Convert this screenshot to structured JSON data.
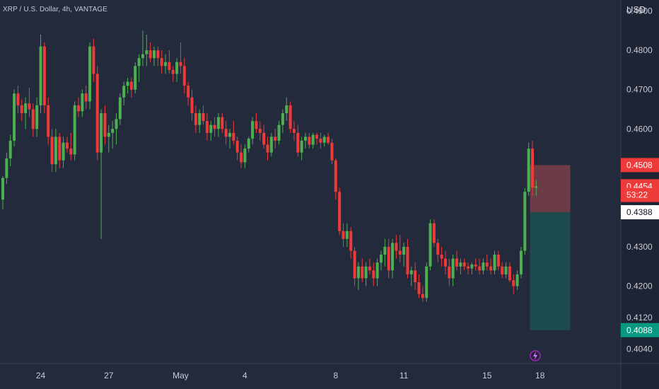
{
  "header": {
    "title": "XRP / U.S. Dollar, 4h, VANTAGE"
  },
  "axis": {
    "currency": "USD"
  },
  "chart_data": {
    "type": "candlestick",
    "title": "XRP / U.S. Dollar, 4h, VANTAGE",
    "price_axis": {
      "unit": "USD",
      "ticks": [
        0.404,
        0.412,
        0.42,
        0.43,
        0.4388,
        0.4454,
        0.4508,
        0.46,
        0.47,
        0.48,
        0.49
      ],
      "tick_labels": [
        "0.4040",
        "0.4120",
        "0.4200",
        "0.4300",
        "0.4388",
        "0.4454",
        "0.4508",
        "0.4600",
        "0.4700",
        "0.4800",
        "0.4900"
      ],
      "range": [
        0.4003,
        0.4928
      ]
    },
    "time_axis": {
      "labels": [
        "24",
        "27",
        "May",
        "4",
        "8",
        "11",
        "15",
        "18"
      ],
      "label_index": [
        10,
        28,
        47,
        64,
        88,
        106,
        128,
        142
      ]
    },
    "colors": {
      "up": "#4caf50",
      "down": "#ef3a3a",
      "axis_bg": "#1e2433",
      "chart_bg": "#232a3b",
      "stop_zone": "#7a3e48",
      "target_zone": "#1d4d4e"
    },
    "price_labels": [
      {
        "text": "0.4508",
        "value": 0.4508,
        "kind": "stop"
      },
      {
        "text": "0.4454",
        "value": 0.4454,
        "kind": "current"
      },
      {
        "text": "53:22",
        "value": 0.4432,
        "kind": "countdown"
      },
      {
        "text": "0.4388",
        "value": 0.4388,
        "kind": "entry"
      },
      {
        "text": "0.4088",
        "value": 0.4088,
        "kind": "target"
      }
    ],
    "position_tool": {
      "side": "short",
      "entry": 0.4388,
      "stop": 0.4508,
      "target": 0.4088,
      "start_index": 139,
      "end_index": 150
    },
    "candles": [
      [
        0.442,
        0.448,
        0.4395,
        0.4475
      ],
      [
        0.4475,
        0.454,
        0.446,
        0.4525
      ],
      [
        0.4525,
        0.4585,
        0.4505,
        0.457
      ],
      [
        0.457,
        0.47,
        0.4555,
        0.469
      ],
      [
        0.469,
        0.471,
        0.464,
        0.466
      ],
      [
        0.466,
        0.4675,
        0.462,
        0.464
      ],
      [
        0.464,
        0.468,
        0.46,
        0.4665
      ],
      [
        0.4665,
        0.4705,
        0.463,
        0.465
      ],
      [
        0.465,
        0.4665,
        0.458,
        0.46
      ],
      [
        0.46,
        0.468,
        0.458,
        0.466
      ],
      [
        0.466,
        0.484,
        0.464,
        0.481
      ],
      [
        0.481,
        0.482,
        0.464,
        0.466
      ],
      [
        0.466,
        0.468,
        0.456,
        0.458
      ],
      [
        0.458,
        0.46,
        0.449,
        0.451
      ],
      [
        0.451,
        0.46,
        0.449,
        0.458
      ],
      [
        0.458,
        0.459,
        0.45,
        0.452
      ],
      [
        0.452,
        0.458,
        0.45,
        0.4565
      ],
      [
        0.4565,
        0.458,
        0.454,
        0.455
      ],
      [
        0.455,
        0.459,
        0.452,
        0.4535
      ],
      [
        0.4535,
        0.467,
        0.452,
        0.466
      ],
      [
        0.466,
        0.468,
        0.463,
        0.4645
      ],
      [
        0.4645,
        0.47,
        0.463,
        0.469
      ],
      [
        0.469,
        0.471,
        0.465,
        0.467
      ],
      [
        0.467,
        0.482,
        0.465,
        0.481
      ],
      [
        0.481,
        0.483,
        0.472,
        0.474
      ],
      [
        0.474,
        0.476,
        0.452,
        0.454
      ],
      [
        0.454,
        0.465,
        0.432,
        0.464
      ],
      [
        0.464,
        0.466,
        0.456,
        0.458
      ],
      [
        0.458,
        0.461,
        0.454,
        0.459
      ],
      [
        0.459,
        0.462,
        0.455,
        0.46
      ],
      [
        0.46,
        0.464,
        0.456,
        0.4625
      ],
      [
        0.4625,
        0.469,
        0.461,
        0.468
      ],
      [
        0.468,
        0.472,
        0.466,
        0.471
      ],
      [
        0.471,
        0.473,
        0.469,
        0.472
      ],
      [
        0.472,
        0.473,
        0.468,
        0.47
      ],
      [
        0.47,
        0.477,
        0.469,
        0.476
      ],
      [
        0.476,
        0.479,
        0.472,
        0.478
      ],
      [
        0.478,
        0.485,
        0.476,
        0.479
      ],
      [
        0.479,
        0.484,
        0.476,
        0.48
      ],
      [
        0.48,
        0.482,
        0.477,
        0.478
      ],
      [
        0.478,
        0.481,
        0.476,
        0.48
      ],
      [
        0.48,
        0.481,
        0.476,
        0.478
      ],
      [
        0.478,
        0.48,
        0.474,
        0.476
      ],
      [
        0.476,
        0.479,
        0.474,
        0.477
      ],
      [
        0.477,
        0.48,
        0.474,
        0.475
      ],
      [
        0.475,
        0.476,
        0.472,
        0.474
      ],
      [
        0.474,
        0.478,
        0.472,
        0.477
      ],
      [
        0.477,
        0.482,
        0.474,
        0.476
      ],
      [
        0.476,
        0.478,
        0.469,
        0.471
      ],
      [
        0.471,
        0.472,
        0.466,
        0.468
      ],
      [
        0.468,
        0.47,
        0.462,
        0.464
      ],
      [
        0.464,
        0.466,
        0.459,
        0.461
      ],
      [
        0.461,
        0.465,
        0.459,
        0.464
      ],
      [
        0.464,
        0.466,
        0.461,
        0.462
      ],
      [
        0.462,
        0.464,
        0.457,
        0.459
      ],
      [
        0.459,
        0.462,
        0.457,
        0.461
      ],
      [
        0.461,
        0.463,
        0.458,
        0.46
      ],
      [
        0.46,
        0.464,
        0.458,
        0.463
      ],
      [
        0.463,
        0.464,
        0.459,
        0.46
      ],
      [
        0.46,
        0.462,
        0.456,
        0.458
      ],
      [
        0.458,
        0.46,
        0.455,
        0.459
      ],
      [
        0.459,
        0.462,
        0.456,
        0.457
      ],
      [
        0.457,
        0.458,
        0.452,
        0.454
      ],
      [
        0.454,
        0.456,
        0.45,
        0.4515
      ],
      [
        0.4515,
        0.456,
        0.45,
        0.455
      ],
      [
        0.455,
        0.458,
        0.454,
        0.4575
      ],
      [
        0.4575,
        0.463,
        0.456,
        0.462
      ],
      [
        0.462,
        0.464,
        0.459,
        0.46
      ],
      [
        0.46,
        0.462,
        0.457,
        0.459
      ],
      [
        0.459,
        0.461,
        0.455,
        0.456
      ],
      [
        0.456,
        0.458,
        0.452,
        0.454
      ],
      [
        0.454,
        0.459,
        0.453,
        0.458
      ],
      [
        0.458,
        0.46,
        0.455,
        0.457
      ],
      [
        0.457,
        0.462,
        0.456,
        0.461
      ],
      [
        0.461,
        0.465,
        0.459,
        0.464
      ],
      [
        0.464,
        0.468,
        0.462,
        0.466
      ],
      [
        0.466,
        0.467,
        0.459,
        0.46
      ],
      [
        0.46,
        0.462,
        0.457,
        0.459
      ],
      [
        0.459,
        0.461,
        0.453,
        0.454
      ],
      [
        0.454,
        0.458,
        0.452,
        0.457
      ],
      [
        0.457,
        0.459,
        0.455,
        0.458
      ],
      [
        0.458,
        0.459,
        0.455,
        0.456
      ],
      [
        0.456,
        0.459,
        0.455,
        0.4585
      ],
      [
        0.4585,
        0.459,
        0.456,
        0.4575
      ],
      [
        0.4575,
        0.459,
        0.455,
        0.4565
      ],
      [
        0.4565,
        0.4585,
        0.4555,
        0.458
      ],
      [
        0.458,
        0.459,
        0.456,
        0.4565
      ],
      [
        0.4565,
        0.4575,
        0.451,
        0.452
      ],
      [
        0.452,
        0.4525,
        0.442,
        0.444
      ],
      [
        0.444,
        0.445,
        0.433,
        0.434
      ],
      [
        0.434,
        0.436,
        0.43,
        0.432
      ],
      [
        0.432,
        0.436,
        0.43,
        0.434
      ],
      [
        0.434,
        0.435,
        0.427,
        0.429
      ],
      [
        0.429,
        0.43,
        0.42,
        0.422
      ],
      [
        0.422,
        0.426,
        0.419,
        0.425
      ],
      [
        0.425,
        0.427,
        0.421,
        0.422
      ],
      [
        0.422,
        0.426,
        0.42,
        0.425
      ],
      [
        0.425,
        0.427,
        0.423,
        0.424
      ],
      [
        0.424,
        0.426,
        0.42,
        0.422
      ],
      [
        0.422,
        0.427,
        0.42,
        0.426
      ],
      [
        0.426,
        0.429,
        0.424,
        0.428
      ],
      [
        0.428,
        0.432,
        0.425,
        0.43
      ],
      [
        0.43,
        0.432,
        0.422,
        0.424
      ],
      [
        0.424,
        0.432,
        0.422,
        0.431
      ],
      [
        0.431,
        0.433,
        0.427,
        0.429
      ],
      [
        0.429,
        0.433,
        0.426,
        0.428
      ],
      [
        0.428,
        0.431,
        0.425,
        0.43
      ],
      [
        0.43,
        0.432,
        0.422,
        0.423
      ],
      [
        0.423,
        0.425,
        0.42,
        0.424
      ],
      [
        0.424,
        0.426,
        0.419,
        0.421
      ],
      [
        0.421,
        0.423,
        0.417,
        0.418
      ],
      [
        0.418,
        0.42,
        0.416,
        0.417
      ],
      [
        0.417,
        0.426,
        0.416,
        0.425
      ],
      [
        0.425,
        0.437,
        0.424,
        0.436
      ],
      [
        0.436,
        0.437,
        0.43,
        0.431
      ],
      [
        0.431,
        0.432,
        0.426,
        0.428
      ],
      [
        0.428,
        0.43,
        0.425,
        0.427
      ],
      [
        0.427,
        0.429,
        0.423,
        0.425
      ],
      [
        0.425,
        0.427,
        0.42,
        0.422
      ],
      [
        0.422,
        0.428,
        0.42,
        0.427
      ],
      [
        0.427,
        0.429,
        0.424,
        0.425
      ],
      [
        0.425,
        0.427,
        0.423,
        0.426
      ],
      [
        0.426,
        0.427,
        0.424,
        0.425
      ],
      [
        0.425,
        0.426,
        0.423,
        0.4245
      ],
      [
        0.4245,
        0.426,
        0.423,
        0.4255
      ],
      [
        0.4255,
        0.427,
        0.424,
        0.425
      ],
      [
        0.425,
        0.427,
        0.423,
        0.424
      ],
      [
        0.424,
        0.427,
        0.423,
        0.426
      ],
      [
        0.426,
        0.428,
        0.424,
        0.425
      ],
      [
        0.425,
        0.427,
        0.423,
        0.424
      ],
      [
        0.424,
        0.429,
        0.423,
        0.428
      ],
      [
        0.428,
        0.429,
        0.424,
        0.425
      ],
      [
        0.425,
        0.426,
        0.422,
        0.423
      ],
      [
        0.423,
        0.426,
        0.422,
        0.425
      ],
      [
        0.425,
        0.426,
        0.421,
        0.4215
      ],
      [
        0.4215,
        0.423,
        0.418,
        0.42
      ],
      [
        0.42,
        0.424,
        0.419,
        0.423
      ],
      [
        0.423,
        0.43,
        0.422,
        0.429
      ],
      [
        0.429,
        0.445,
        0.428,
        0.444
      ],
      [
        0.444,
        0.4565,
        0.443,
        0.455
      ],
      [
        0.455,
        0.457,
        0.443,
        0.445
      ],
      [
        0.445,
        0.447,
        0.443,
        0.4454
      ]
    ]
  }
}
